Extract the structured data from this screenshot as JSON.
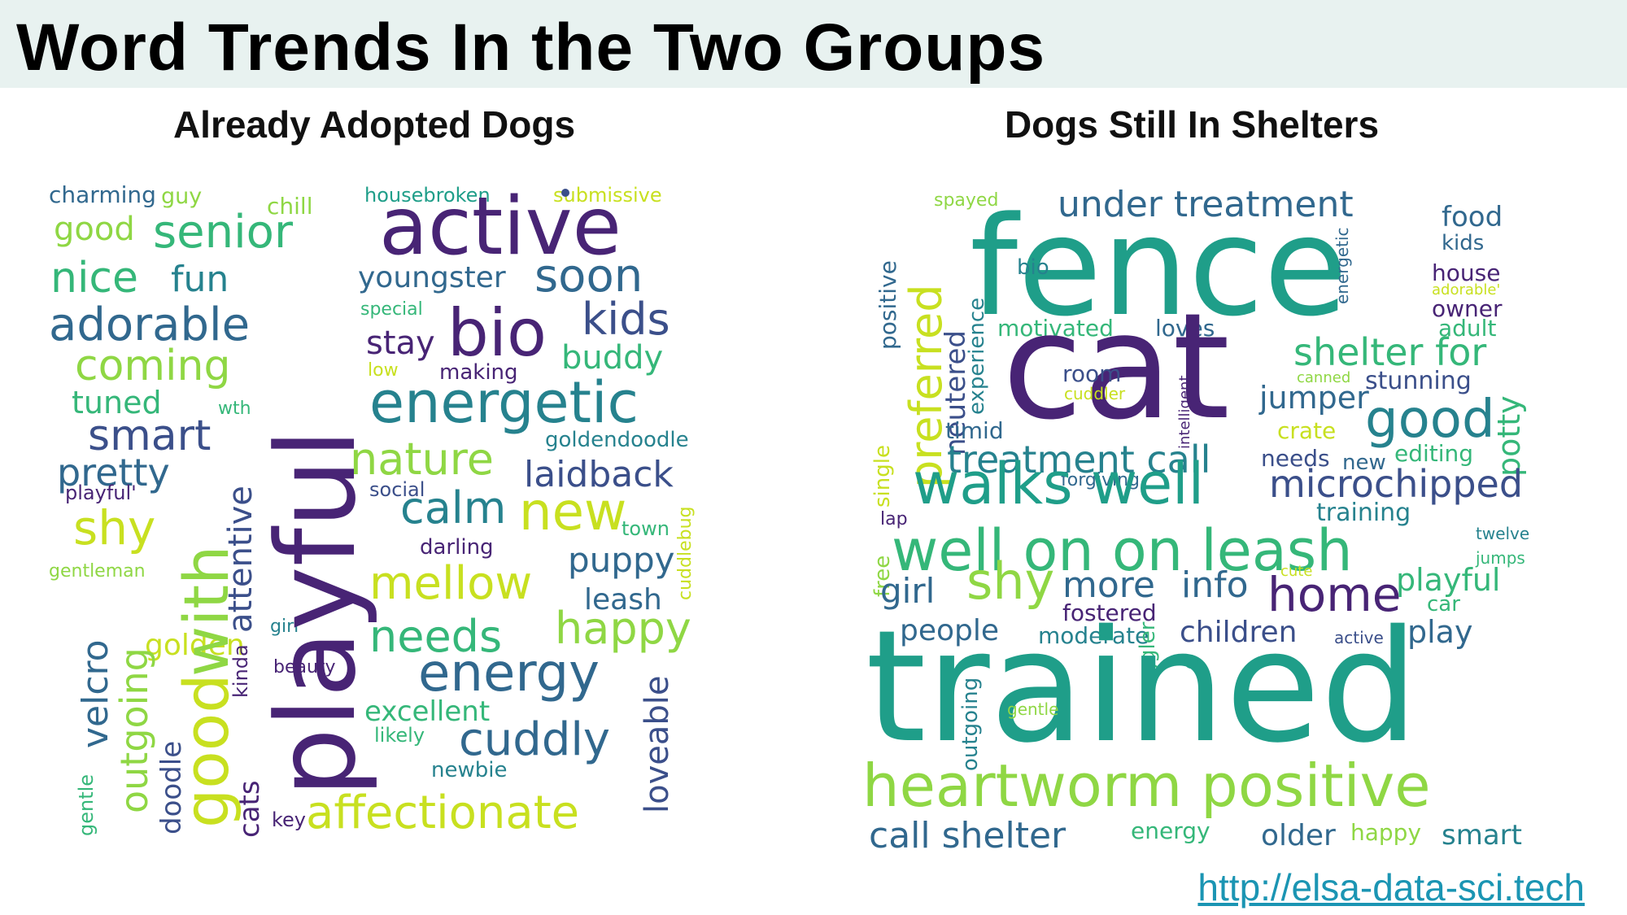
{
  "header": {
    "title": "Word Trends In the Two Groups"
  },
  "panels": {
    "adopted": {
      "title": "Already Adopted Dogs"
    },
    "shelter": {
      "title": "Dogs Still In Shelters"
    }
  },
  "source_link": "http://elsa-data-sci.tech",
  "palette": {
    "dark_purple": "#482475",
    "indigo": "#3b4f8a",
    "blue": "#31688e",
    "teal": "#26828e",
    "teal_green": "#1f9e89",
    "green": "#35b779",
    "lime": "#8fd744",
    "yellow": "#c8e020"
  },
  "adopted_words": [
    "charming",
    "guy",
    "chill",
    "housebroken",
    "submissive",
    "good",
    "senior",
    "active",
    "nice",
    "fun",
    "youngster",
    "soon",
    "special",
    "adorable",
    "bio",
    "kids",
    "stay",
    "coming",
    "low",
    "making",
    "buddy",
    "tuned",
    "energetic",
    "wth",
    "smart",
    "goldendoodle",
    "pretty",
    "nature",
    "laidback",
    "playful'",
    "social",
    "calm",
    "new",
    "shy",
    "town",
    "darling",
    "cuddlebug",
    "gentleman",
    "puppy",
    "mellow",
    "leash",
    "velcro",
    "happy",
    "girl",
    "needs",
    "golden",
    "beauty",
    "energy",
    "kinda",
    "excellent",
    "likely",
    "cuddly",
    "newbie",
    "loveable",
    "gentle",
    "doodle",
    "cats",
    "key",
    "affectionate",
    "outgoing",
    "good",
    "with",
    "attentive",
    "playful"
  ],
  "shelter_words": [
    "spayed",
    "under treatment",
    "food",
    "kids",
    "fence",
    "bio",
    "house",
    "adorable'",
    "energetic",
    "owner",
    "adult",
    "positive",
    "preferred",
    "neutered",
    "experience",
    "motivated",
    "loves",
    "cat",
    "shelter for",
    "room",
    "canned",
    "cuddler",
    "intelligent",
    "jumper",
    "stunning",
    "timid",
    "crate",
    "good",
    "potty",
    "treatment call",
    "needs",
    "new",
    "editing",
    "forgiving",
    "single",
    "microchipped",
    "walks well",
    "lap",
    "training",
    "twelve",
    "free",
    "well on on leash",
    "jumps",
    "girl",
    "shy",
    "more",
    "info",
    "home",
    "cute",
    "playful",
    "car",
    "fostered",
    "people",
    "moderate",
    "children",
    "active",
    "play",
    "snuggler",
    "outgoing",
    "trained",
    "gentle",
    "heartworm positive",
    "call shelter",
    "energy",
    "older",
    "happy",
    "smart"
  ]
}
